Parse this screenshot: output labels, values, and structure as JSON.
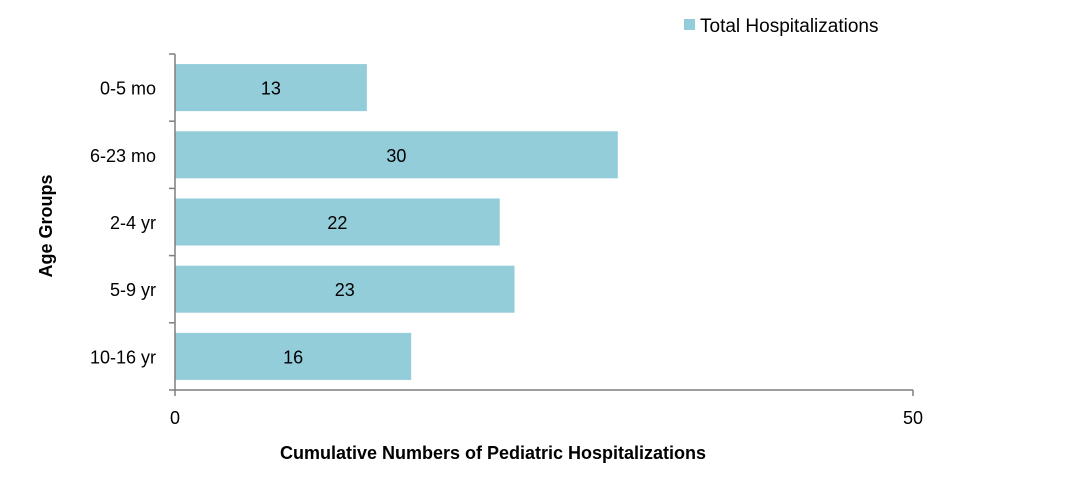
{
  "chart_data": {
    "type": "bar",
    "orientation": "horizontal",
    "categories": [
      "0-5 mo",
      "6-23 mo",
      "2-4 yr",
      "5-9 yr",
      "10-16 yr"
    ],
    "series": [
      {
        "name": "Total Hospitalizations",
        "values": [
          13,
          30,
          22,
          23,
          16
        ]
      }
    ],
    "xlabel": "Cumulative Numbers of Pediatric Hospitalizations",
    "ylabel": "Age Groups",
    "xlim": [
      0,
      50
    ],
    "x_ticks": [
      "0",
      "50"
    ],
    "data_labels": [
      "13",
      "30",
      "22",
      "23",
      "16"
    ],
    "grid": false,
    "legend_position": "top-right",
    "colors": {
      "bar": "#93cdd9",
      "axis": "#7f7f7f",
      "text": "#000000"
    }
  }
}
